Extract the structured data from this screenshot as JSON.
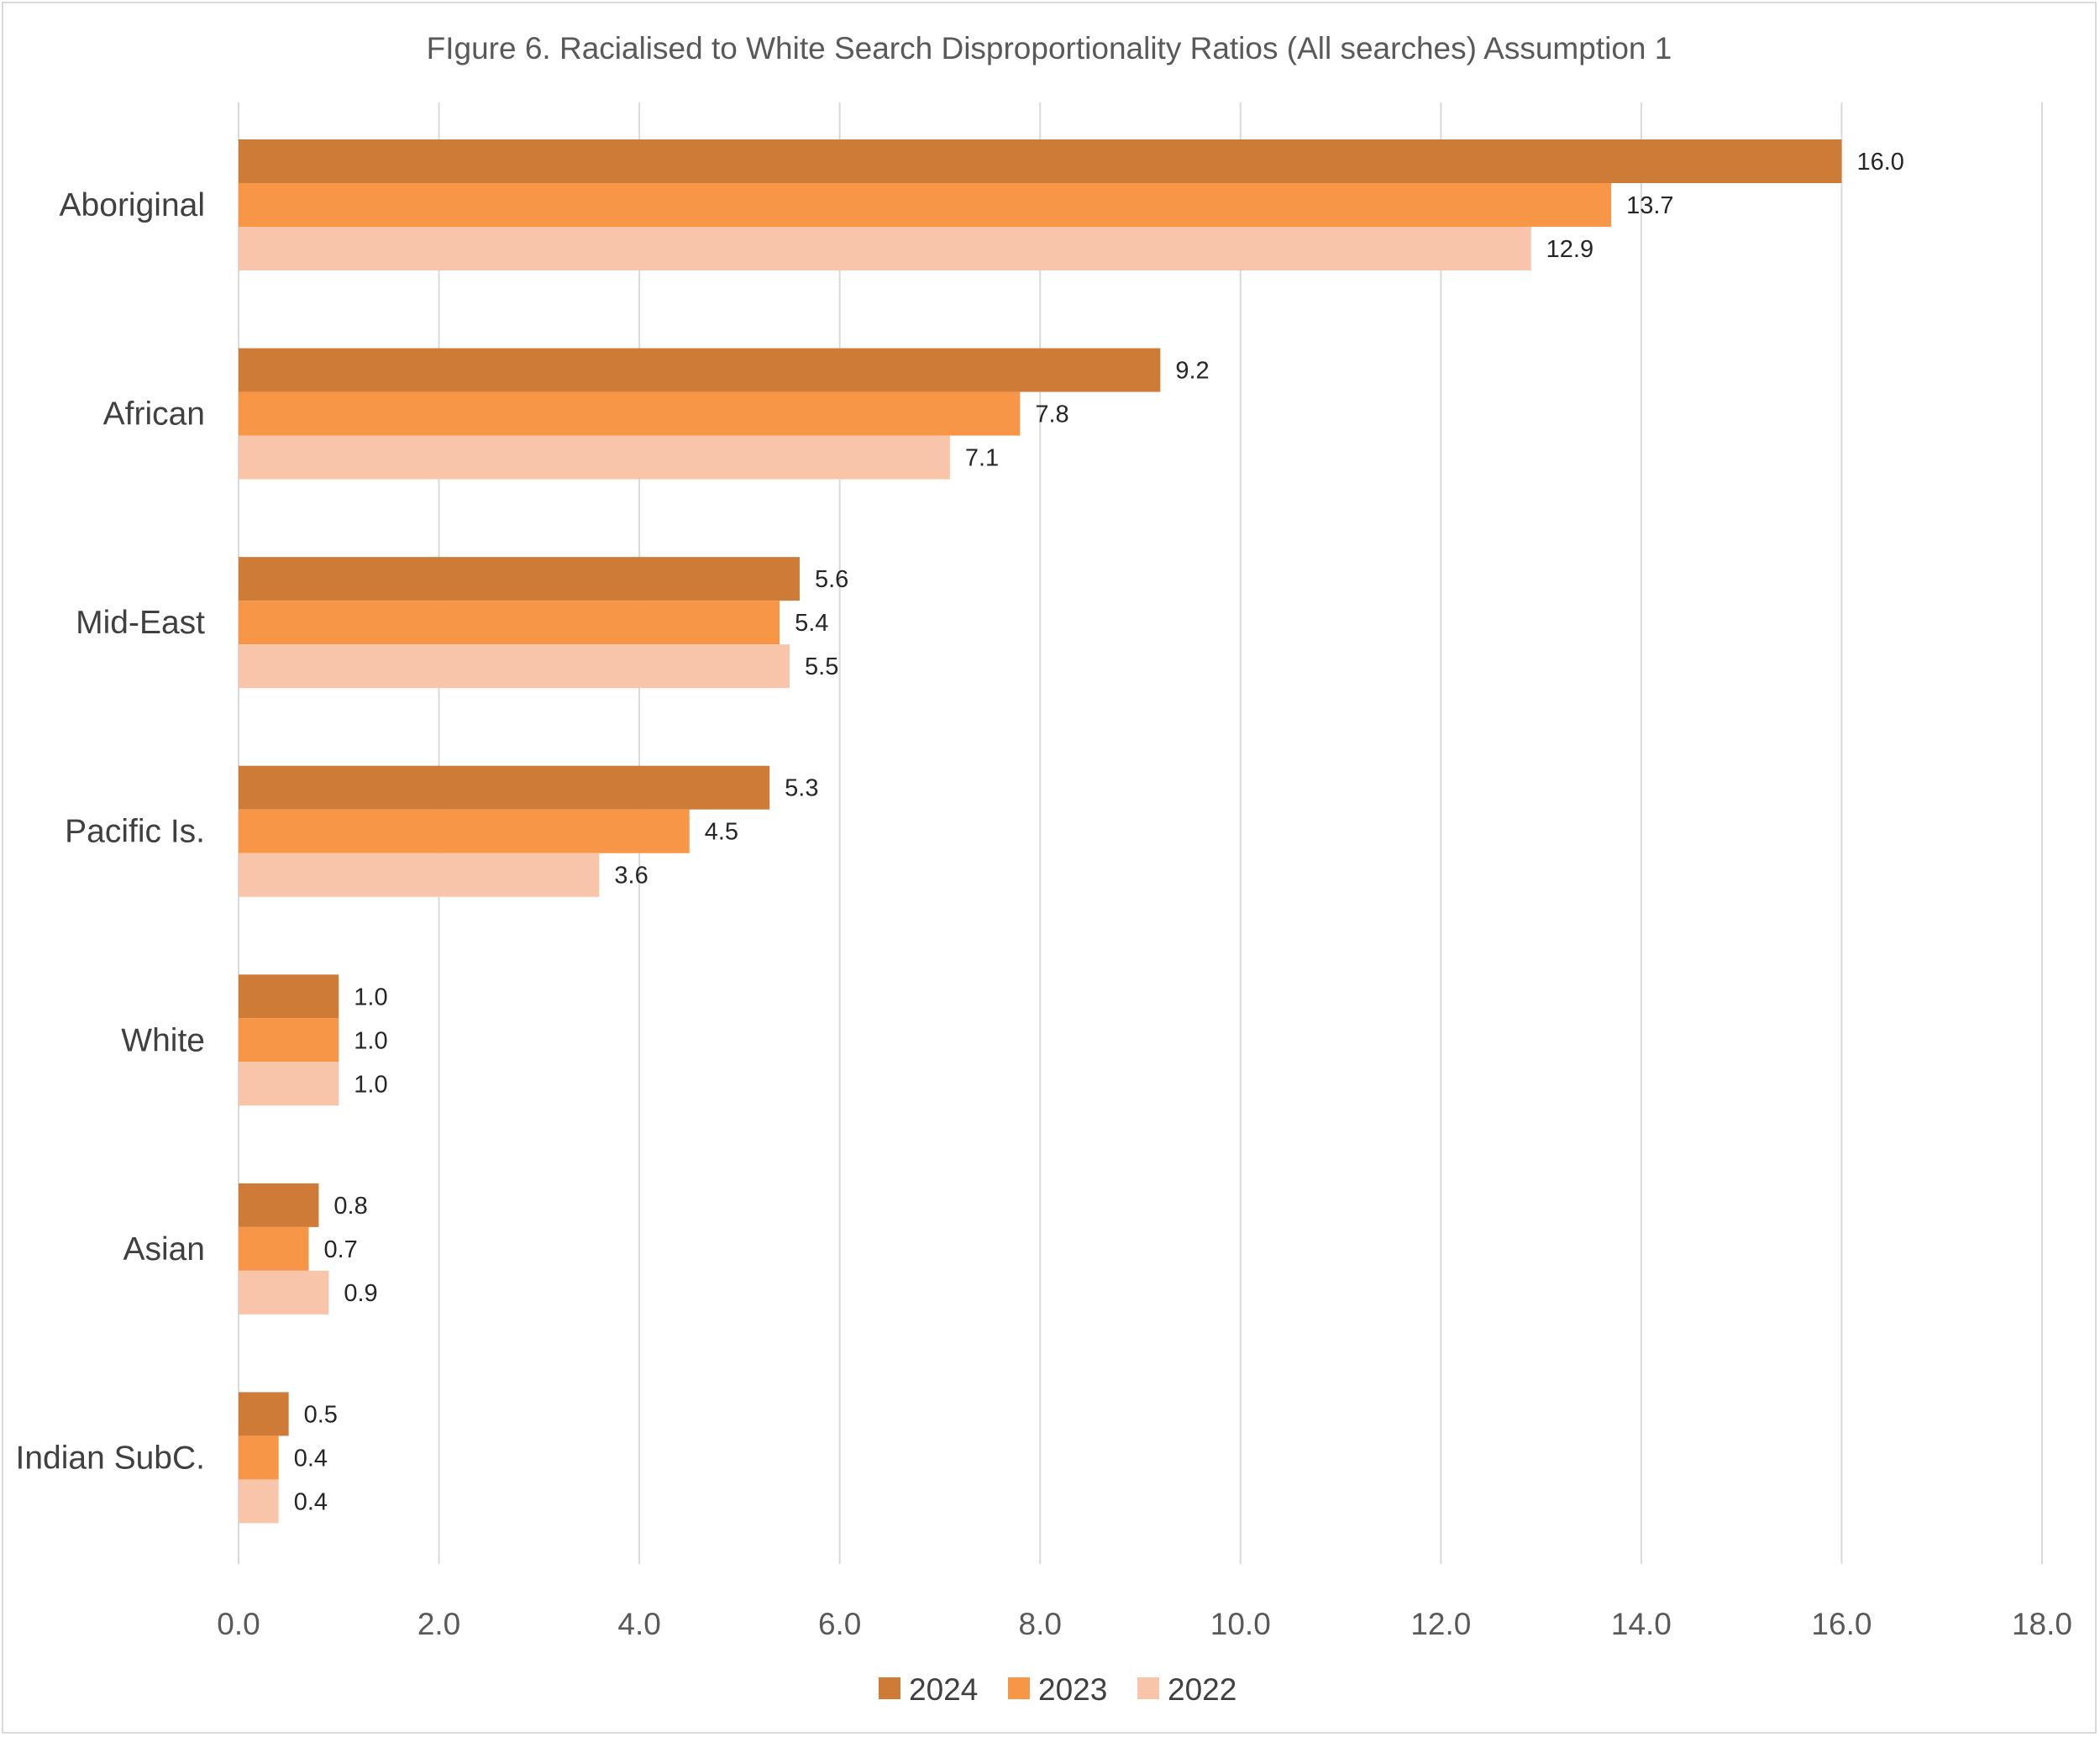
{
  "chart_data": {
    "type": "bar",
    "orientation": "horizontal",
    "title": "FIgure 6. Racialised to White Search Disproportionality Ratios   (All searches) Assumption 1",
    "categories": [
      "Aboriginal",
      "African",
      "Mid-East",
      "Pacific Is.",
      "White",
      "Asian",
      "Indian SubC."
    ],
    "series": [
      {
        "name": "2024",
        "color": "#cd7b37",
        "values": [
          16.0,
          9.2,
          5.6,
          5.3,
          1.0,
          0.8,
          0.5
        ]
      },
      {
        "name": "2023",
        "color": "#f79646",
        "values": [
          13.7,
          7.8,
          5.4,
          4.5,
          1.0,
          0.7,
          0.4
        ]
      },
      {
        "name": "2022",
        "color": "#f9c5aa",
        "values": [
          12.9,
          7.1,
          5.5,
          3.6,
          1.0,
          0.9,
          0.4
        ]
      }
    ],
    "data_labels": [
      [
        "16.0",
        "9.2",
        "5.6",
        "5.3",
        "1.0",
        "0.8",
        "0.5"
      ],
      [
        "13.7",
        "7.8",
        "5.4",
        "4.5",
        "1.0",
        "0.7",
        "0.4"
      ],
      [
        "12.9",
        "7.1",
        "5.5",
        "3.6",
        "1.0",
        "0.9",
        "0.4"
      ]
    ],
    "xlim": [
      0,
      18
    ],
    "xticks": [
      "0.0",
      "2.0",
      "4.0",
      "6.0",
      "8.0",
      "10.0",
      "12.0",
      "14.0",
      "16.0",
      "18.0"
    ],
    "grid": "vertical",
    "legend_position": "bottom"
  }
}
